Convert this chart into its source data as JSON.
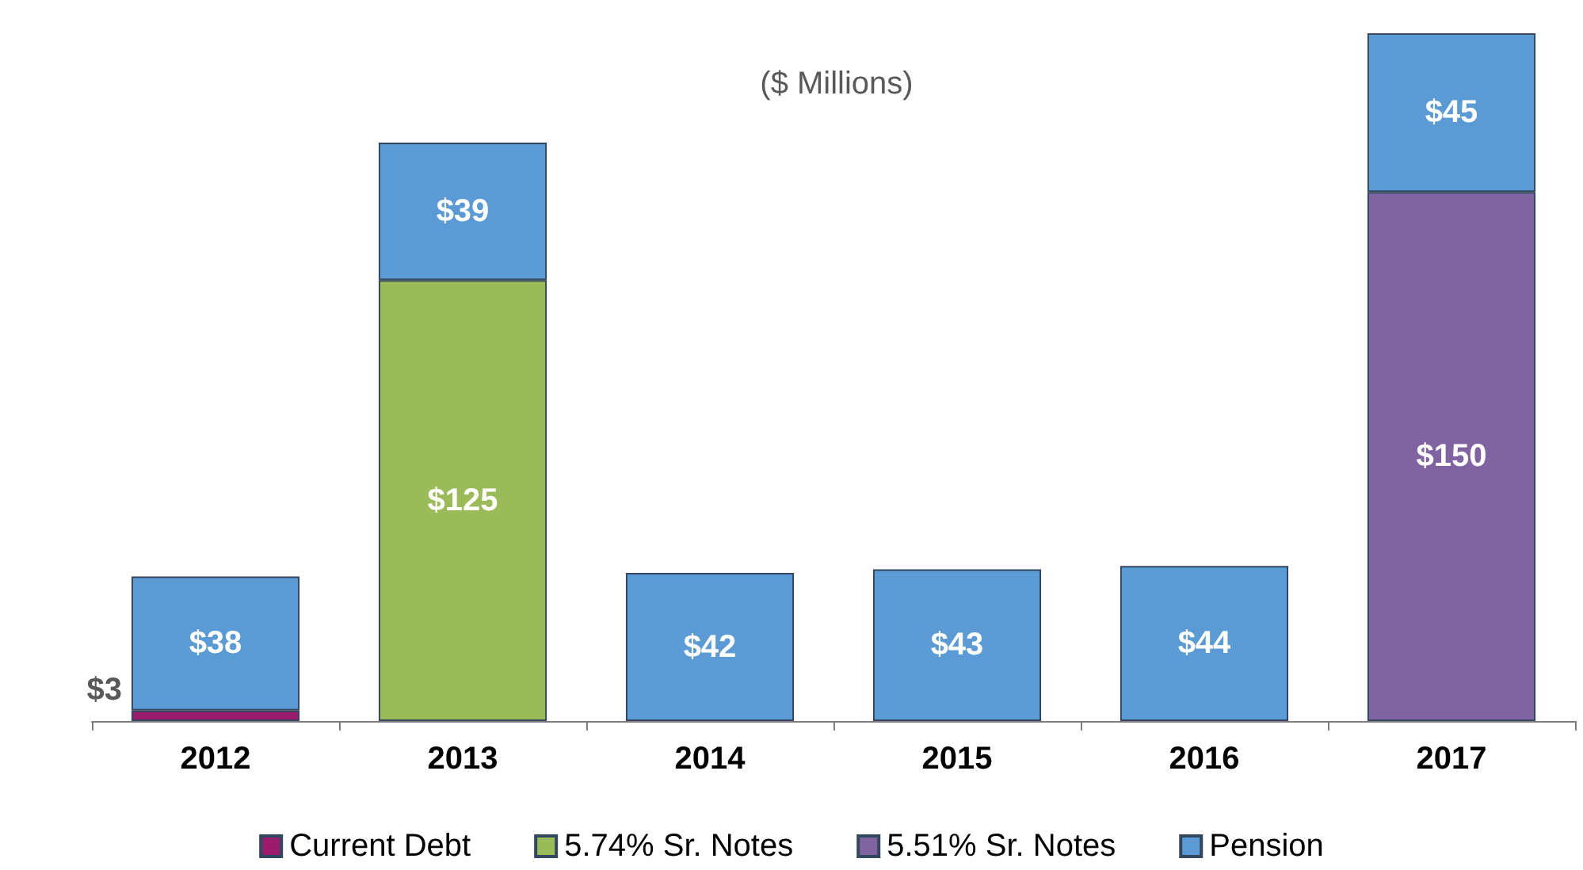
{
  "chart_data": {
    "type": "bar",
    "title": "($ Millions)",
    "stacked": true,
    "legend": "bottom",
    "categories": [
      "2012",
      "2013",
      "2014",
      "2015",
      "2016",
      "2017"
    ],
    "series": [
      {
        "name": "Current Debt",
        "color": "#9b1b6e",
        "values": [
          3,
          null,
          null,
          null,
          null,
          null
        ],
        "value_labels": [
          "$3",
          null,
          null,
          null,
          null,
          null
        ]
      },
      {
        "name": "5.74% Sr. Notes",
        "color": "#9bbb59",
        "values": [
          null,
          125,
          null,
          null,
          null,
          null
        ],
        "value_labels": [
          null,
          "$125",
          null,
          null,
          null,
          null
        ]
      },
      {
        "name": "5.51% Sr. Notes",
        "color": "#8064a2",
        "values": [
          null,
          null,
          null,
          null,
          null,
          150
        ],
        "value_labels": [
          null,
          null,
          null,
          null,
          null,
          "$150"
        ]
      },
      {
        "name": "Pension",
        "color": "#5b9bd5",
        "values": [
          38,
          39,
          42,
          43,
          44,
          45
        ],
        "value_labels": [
          "$38",
          "$39",
          "$42",
          "$43",
          "$44",
          "$45"
        ]
      }
    ]
  }
}
